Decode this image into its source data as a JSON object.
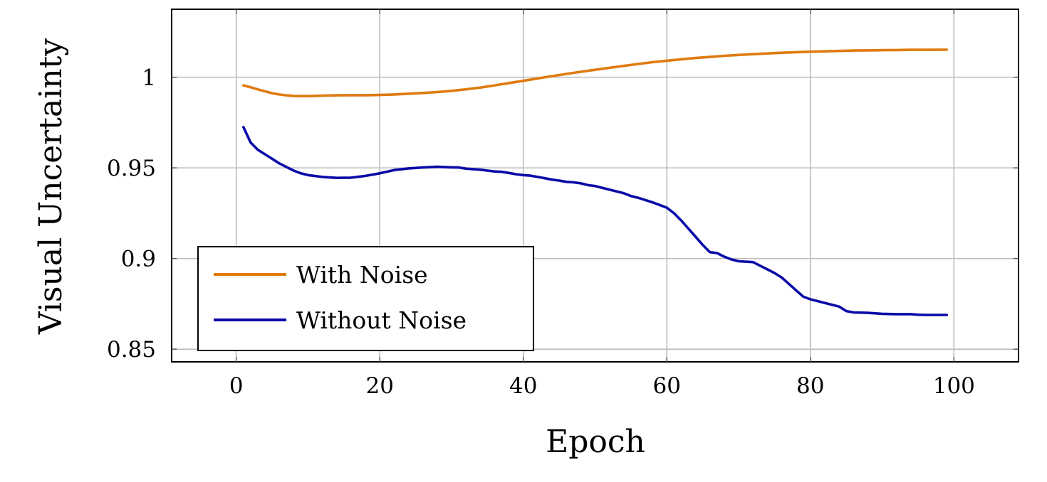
{
  "chart_data": {
    "type": "line",
    "xlabel": "Epoch",
    "ylabel": "Visual Uncertainty",
    "xlim": [
      -9,
      109
    ],
    "ylim": [
      0.843,
      1.0375
    ],
    "xticks": [
      0,
      20,
      40,
      60,
      80,
      100
    ],
    "yticks": [
      0.85,
      0.9,
      0.95,
      1
    ],
    "xtick_labels": [
      "0",
      "20",
      "40",
      "60",
      "80",
      "100"
    ],
    "ytick_labels": [
      "0.85",
      "0.9",
      "0.95",
      "1"
    ],
    "grid": true,
    "legend_position": "bottom-left",
    "series": [
      {
        "name": "With Noise",
        "color": "#e07a10",
        "x": [
          1,
          2,
          3,
          4,
          5,
          6,
          7,
          8,
          9,
          10,
          12,
          14,
          16,
          18,
          20,
          22,
          24,
          26,
          28,
          30,
          32,
          34,
          36,
          38,
          40,
          42,
          44,
          46,
          48,
          50,
          52,
          54,
          56,
          58,
          60,
          62,
          64,
          66,
          68,
          70,
          72,
          74,
          76,
          78,
          80,
          82,
          84,
          86,
          88,
          90,
          92,
          94,
          96,
          99
        ],
        "y": [
          0.9955,
          0.9945,
          0.9933,
          0.9922,
          0.9912,
          0.9905,
          0.99,
          0.9897,
          0.9896,
          0.9896,
          0.9898,
          0.99,
          0.9901,
          0.9901,
          0.9902,
          0.9905,
          0.9909,
          0.9913,
          0.9918,
          0.9925,
          0.9933,
          0.9943,
          0.9955,
          0.9968,
          0.998,
          0.9993,
          1.0006,
          1.0018,
          1.003,
          1.0041,
          1.0052,
          1.0063,
          1.0073,
          1.0083,
          1.0091,
          1.0099,
          1.0106,
          1.0112,
          1.0118,
          1.0123,
          1.0127,
          1.0131,
          1.0135,
          1.0138,
          1.0141,
          1.0143,
          1.0145,
          1.0147,
          1.0148,
          1.0149,
          1.015,
          1.0151,
          1.0151,
          1.0152
        ]
      },
      {
        "name": "Without Noise",
        "color": "#0a0aa8",
        "x": [
          1,
          2,
          3,
          4,
          5,
          6,
          7,
          8,
          9,
          10,
          12,
          14,
          16,
          18,
          20,
          22,
          24,
          26,
          28,
          30,
          31,
          32,
          34,
          35,
          36,
          37,
          38,
          39,
          40,
          41,
          42,
          43,
          44,
          45,
          46,
          47,
          48,
          49,
          50,
          51,
          52,
          53,
          54,
          55,
          56,
          58,
          60,
          61,
          62,
          63,
          64,
          65,
          66,
          67,
          68,
          69,
          70,
          72,
          73,
          74,
          75,
          76,
          77,
          78,
          79,
          80,
          82,
          84,
          85,
          86,
          88,
          90,
          92,
          94,
          95,
          96,
          99
        ],
        "y": [
          0.9725,
          0.964,
          0.96,
          0.9575,
          0.955,
          0.9525,
          0.9505,
          0.9485,
          0.947,
          0.946,
          0.945,
          0.9445,
          0.9446,
          0.9456,
          0.947,
          0.9488,
          0.9497,
          0.9502,
          0.9506,
          0.9503,
          0.9502,
          0.9496,
          0.949,
          0.9485,
          0.948,
          0.9478,
          0.9472,
          0.9465,
          0.946,
          0.9457,
          0.945,
          0.9443,
          0.9435,
          0.943,
          0.9423,
          0.942,
          0.9415,
          0.9405,
          0.94,
          0.939,
          0.938,
          0.937,
          0.936,
          0.9345,
          0.9335,
          0.931,
          0.928,
          0.925,
          0.921,
          0.9165,
          0.912,
          0.9075,
          0.9035,
          0.903,
          0.901,
          0.8995,
          0.8985,
          0.898,
          0.896,
          0.894,
          0.892,
          0.8895,
          0.886,
          0.8825,
          0.879,
          0.8775,
          0.8755,
          0.8735,
          0.871,
          0.8703,
          0.87,
          0.8695,
          0.8693,
          0.8693,
          0.869,
          0.8689,
          0.8689
        ]
      }
    ]
  }
}
